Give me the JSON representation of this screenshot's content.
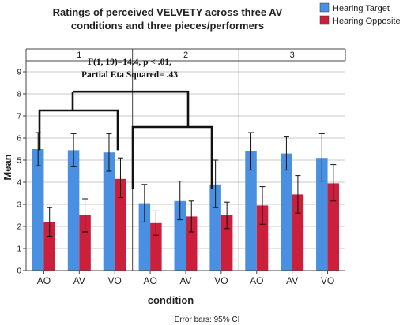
{
  "chart_data": {
    "type": "bar",
    "title_lines": [
      "Ratings of perceived VELVETY across three AV",
      "conditions and three pieces/performers"
    ],
    "xlabel": "condition",
    "ylabel": "Mean",
    "ylim": [
      0,
      9.5
    ],
    "yticks": [
      "0",
      "1",
      "2",
      "3",
      "4",
      "5",
      "6",
      "7",
      "8",
      "9"
    ],
    "categories": [
      "AO",
      "AV",
      "VO"
    ],
    "facets": [
      "1",
      "2",
      "3"
    ],
    "grid": "horizontal",
    "legend_position": "top-right",
    "series": [
      {
        "name": "Hearing Target",
        "color": "#4a90e2",
        "values": [
          [
            5.5,
            5.45,
            5.35
          ],
          [
            3.05,
            3.15,
            3.9
          ],
          [
            5.4,
            5.3,
            5.1
          ]
        ],
        "ci_low": [
          [
            4.75,
            4.7,
            4.5
          ],
          [
            2.2,
            2.3,
            2.85
          ],
          [
            4.55,
            4.55,
            4.05
          ]
        ],
        "ci_high": [
          [
            6.25,
            6.2,
            6.2
          ],
          [
            3.9,
            4.05,
            5.0
          ],
          [
            6.25,
            6.05,
            6.2
          ]
        ]
      },
      {
        "name": "Hearing Opposite",
        "color": "#cc1f3c",
        "values": [
          [
            2.2,
            2.5,
            4.15
          ],
          [
            2.15,
            2.45,
            2.5
          ],
          [
            2.95,
            3.45,
            3.95
          ]
        ],
        "ci_low": [
          [
            1.55,
            1.75,
            3.3
          ],
          [
            1.6,
            1.75,
            1.9
          ],
          [
            2.1,
            2.6,
            3.15
          ]
        ],
        "ci_high": [
          [
            2.85,
            3.25,
            5.1
          ],
          [
            2.7,
            3.15,
            3.1
          ],
          [
            3.8,
            4.3,
            4.8
          ]
        ]
      }
    ],
    "annotation": {
      "line1": "F(1, 19)=14.4, p < .01,",
      "line2": "Partial Eta Squared= .43"
    },
    "footnote": "Error bars: 95% CI",
    "axis_color": "#444444",
    "grid_color": "#c8c8c8"
  }
}
